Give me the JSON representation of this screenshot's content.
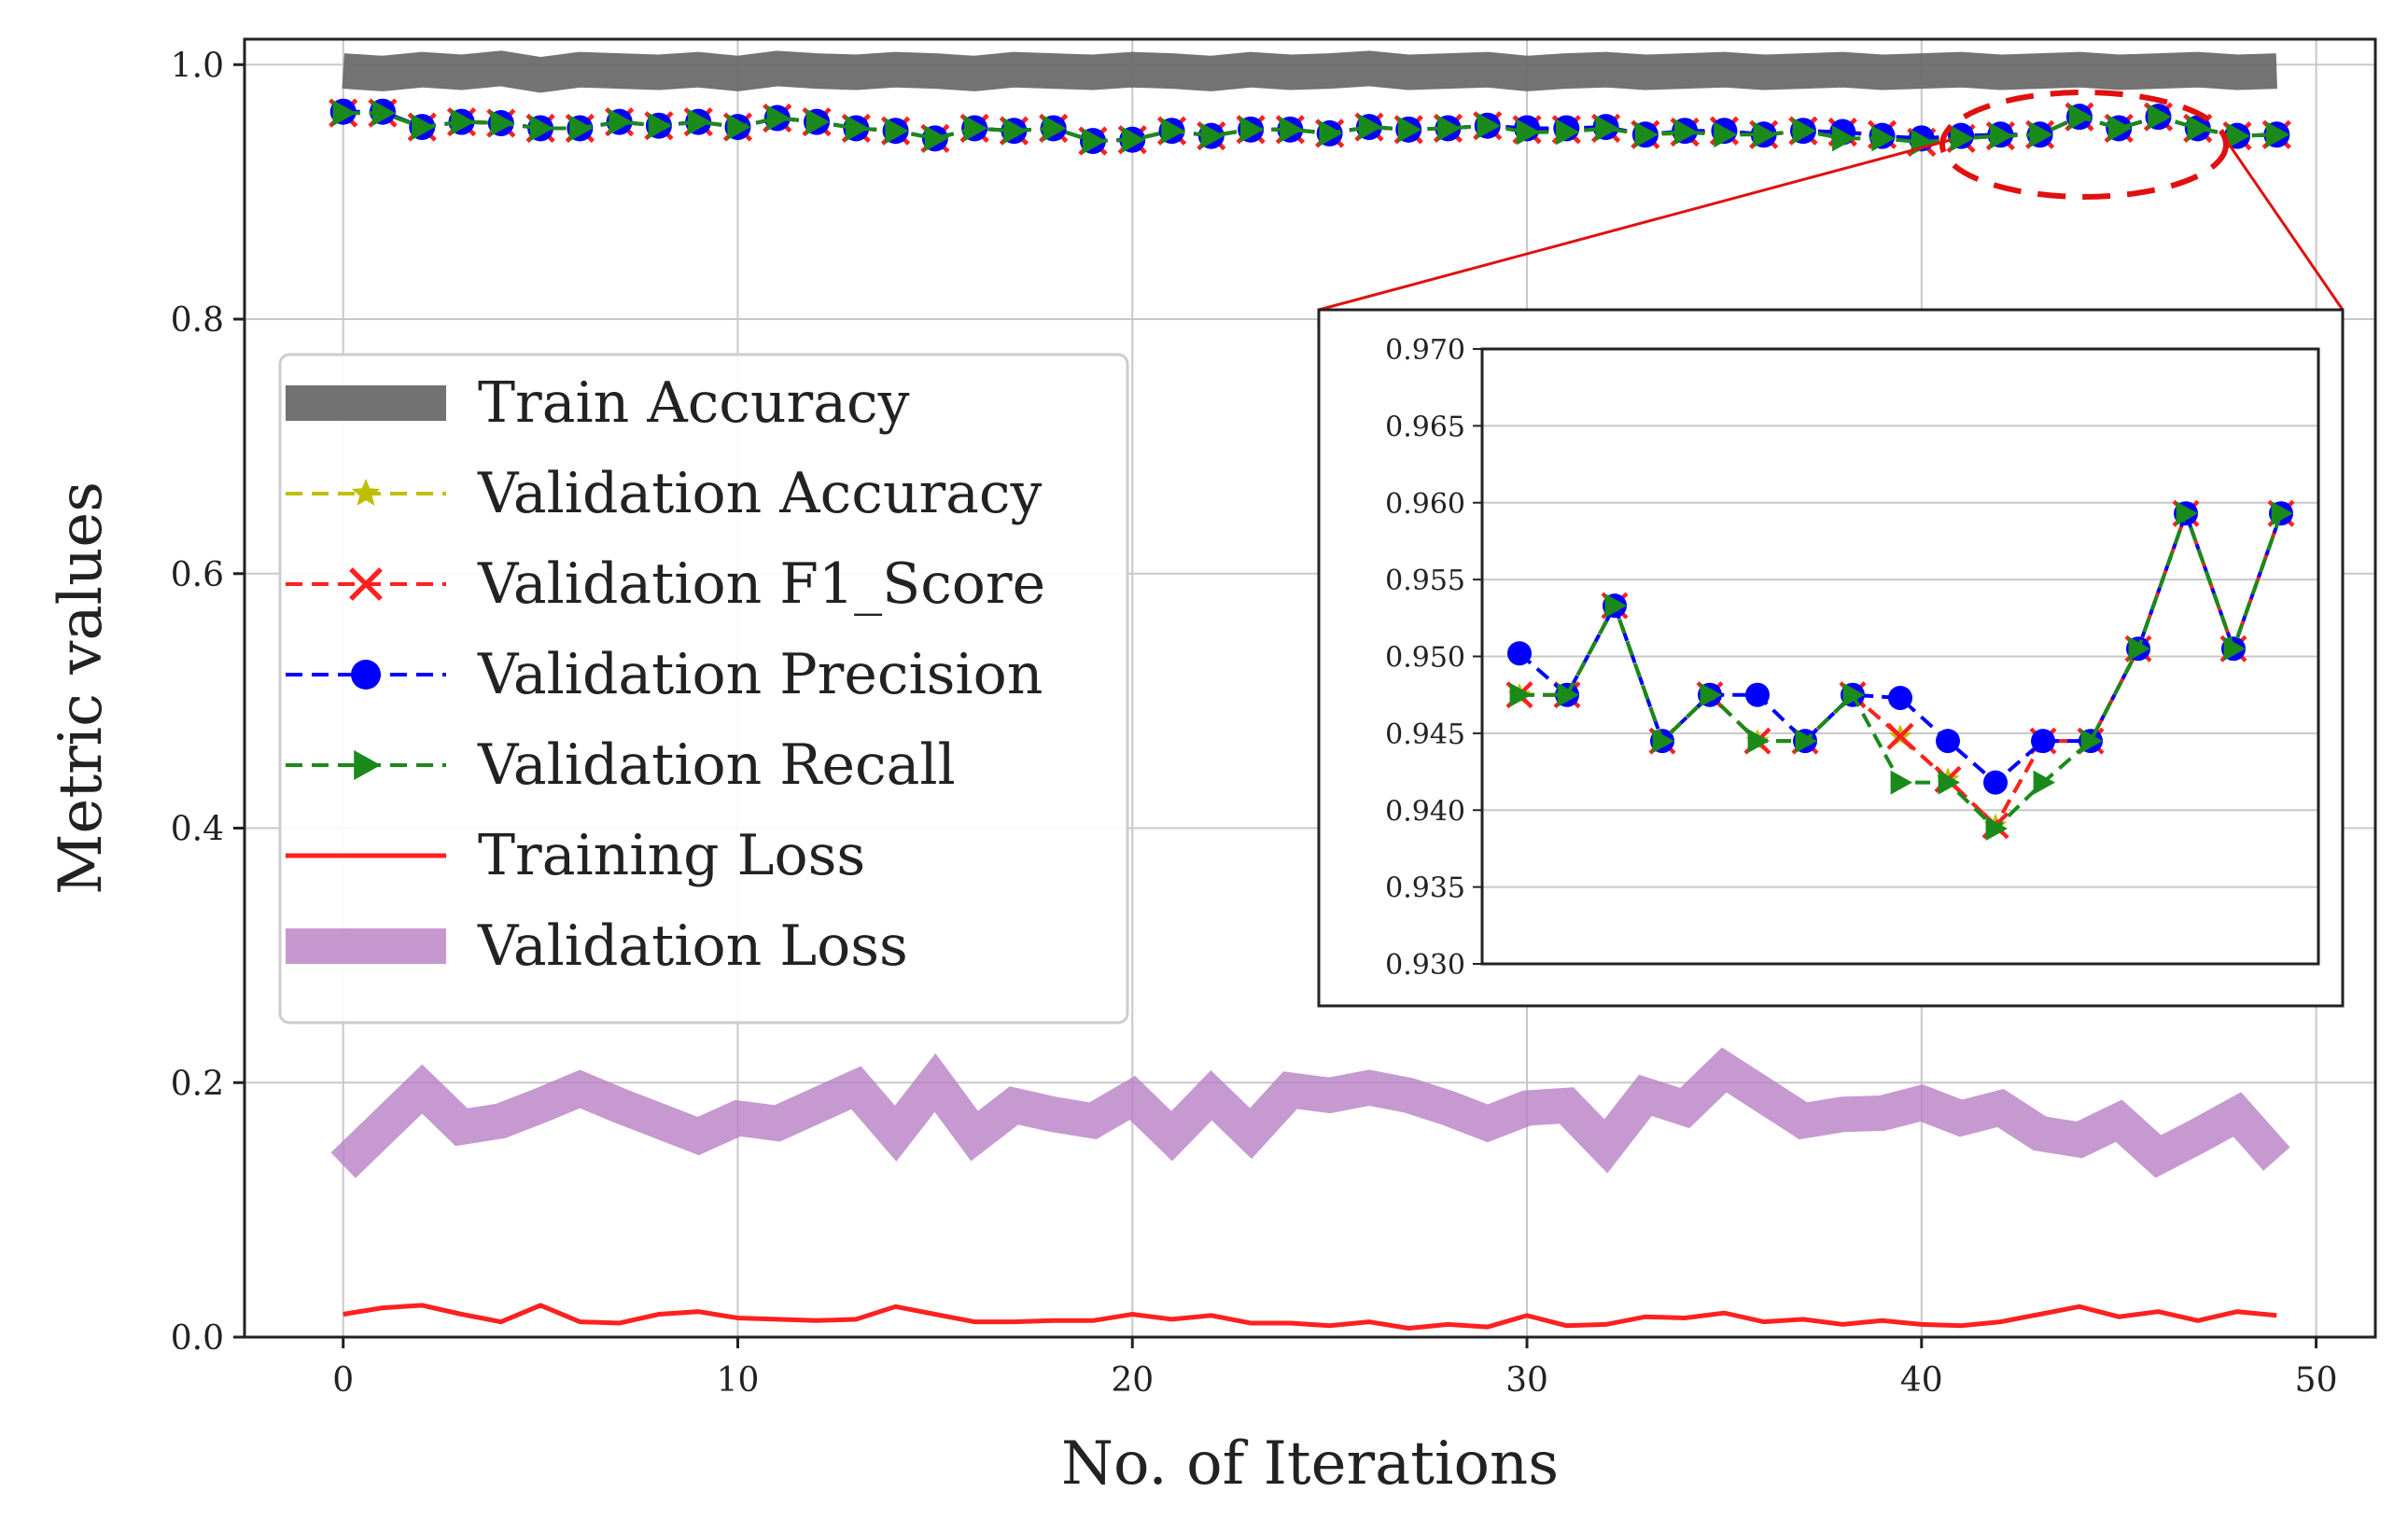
{
  "chart_data": {
    "type": "line",
    "title": "",
    "xlabel": "No. of Iterations",
    "ylabel": "Metric values",
    "xlim": [
      -2.5,
      51.5
    ],
    "ylim": [
      0.0,
      1.02
    ],
    "grid": true,
    "xticks": [
      0,
      10,
      20,
      30,
      40,
      50
    ],
    "xtick_labels": [
      "0",
      "10",
      "20",
      "30",
      "40",
      "50"
    ],
    "yticks": [
      0.0,
      0.2,
      0.4,
      0.6,
      0.8,
      1.0
    ],
    "ytick_labels": [
      "0.0",
      "0.2",
      "0.4",
      "0.6",
      "0.8",
      "1.0"
    ],
    "legend_position": "center-left",
    "x": [
      0,
      1,
      2,
      3,
      4,
      5,
      6,
      7,
      8,
      9,
      10,
      11,
      12,
      13,
      14,
      15,
      16,
      17,
      18,
      19,
      20,
      21,
      22,
      23,
      24,
      25,
      26,
      27,
      28,
      29,
      30,
      31,
      32,
      33,
      34,
      35,
      36,
      37,
      38,
      39,
      40,
      41,
      42,
      43,
      44,
      45,
      46,
      47,
      48,
      49
    ],
    "series": [
      {
        "name": "Train Accuracy",
        "color": "#6b6b6b",
        "style": "solid-thick",
        "values": [
          0.995,
          0.993,
          0.996,
          0.994,
          0.997,
          0.992,
          0.996,
          0.995,
          0.994,
          0.996,
          0.993,
          0.997,
          0.995,
          0.994,
          0.996,
          0.995,
          0.993,
          0.996,
          0.995,
          0.994,
          0.996,
          0.995,
          0.993,
          0.996,
          0.994,
          0.995,
          0.997,
          0.994,
          0.995,
          0.996,
          0.993,
          0.995,
          0.996,
          0.994,
          0.995,
          0.996,
          0.994,
          0.995,
          0.996,
          0.994,
          0.995,
          0.996,
          0.994,
          0.995,
          0.996,
          0.994,
          0.995,
          0.996,
          0.994,
          0.995
        ]
      },
      {
        "name": "Validation Accuracy",
        "color": "#bfbf00",
        "style": "dashed-star",
        "values": [
          0.962,
          0.962,
          0.951,
          0.955,
          0.954,
          0.95,
          0.95,
          0.955,
          0.952,
          0.955,
          0.951,
          0.958,
          0.955,
          0.95,
          0.948,
          0.942,
          0.95,
          0.948,
          0.95,
          0.94,
          0.941,
          0.948,
          0.944,
          0.949,
          0.949,
          0.946,
          0.951,
          0.949,
          0.95,
          0.952,
          0.949,
          0.949,
          0.95,
          0.945,
          0.946,
          0.948,
          0.945,
          0.948,
          0.947,
          0.944,
          0.94,
          0.942,
          0.944,
          0.945,
          0.959,
          0.95,
          0.959,
          0.95,
          0.944,
          0.945
        ]
      },
      {
        "name": "Validation F1_Score",
        "color": "#ff2020",
        "style": "dashed-x",
        "values": [
          0.962,
          0.962,
          0.951,
          0.955,
          0.954,
          0.95,
          0.95,
          0.955,
          0.952,
          0.955,
          0.951,
          0.958,
          0.955,
          0.95,
          0.948,
          0.942,
          0.95,
          0.948,
          0.95,
          0.94,
          0.941,
          0.948,
          0.944,
          0.949,
          0.949,
          0.946,
          0.951,
          0.949,
          0.95,
          0.952,
          0.949,
          0.949,
          0.95,
          0.945,
          0.947,
          0.948,
          0.945,
          0.948,
          0.947,
          0.945,
          0.939,
          0.942,
          0.944,
          0.945,
          0.959,
          0.95,
          0.959,
          0.95,
          0.944,
          0.945
        ]
      },
      {
        "name": "Validation Precision",
        "color": "#0000ff",
        "style": "dashed-circle",
        "values": [
          0.963,
          0.963,
          0.951,
          0.955,
          0.954,
          0.95,
          0.95,
          0.955,
          0.952,
          0.955,
          0.951,
          0.958,
          0.955,
          0.95,
          0.948,
          0.942,
          0.95,
          0.948,
          0.95,
          0.94,
          0.941,
          0.948,
          0.944,
          0.949,
          0.949,
          0.946,
          0.951,
          0.949,
          0.95,
          0.952,
          0.95,
          0.95,
          0.951,
          0.945,
          0.948,
          0.948,
          0.945,
          0.948,
          0.947,
          0.944,
          0.942,
          0.944,
          0.945,
          0.945,
          0.959,
          0.95,
          0.959,
          0.95,
          0.944,
          0.945
        ]
      },
      {
        "name": "Validation Recall",
        "color": "#1a8a1a",
        "style": "dashed-triangle",
        "values": [
          0.962,
          0.962,
          0.951,
          0.955,
          0.954,
          0.95,
          0.95,
          0.955,
          0.952,
          0.955,
          0.951,
          0.958,
          0.955,
          0.95,
          0.948,
          0.942,
          0.95,
          0.948,
          0.95,
          0.94,
          0.941,
          0.948,
          0.944,
          0.949,
          0.949,
          0.946,
          0.951,
          0.949,
          0.95,
          0.952,
          0.947,
          0.947,
          0.95,
          0.945,
          0.947,
          0.945,
          0.945,
          0.948,
          0.942,
          0.942,
          0.939,
          0.942,
          0.944,
          0.945,
          0.959,
          0.95,
          0.959,
          0.95,
          0.944,
          0.945
        ]
      },
      {
        "name": "Training Loss",
        "color": "#ff2020",
        "style": "solid",
        "values": [
          0.018,
          0.023,
          0.025,
          0.018,
          0.012,
          0.025,
          0.012,
          0.011,
          0.018,
          0.02,
          0.015,
          0.014,
          0.013,
          0.014,
          0.024,
          0.018,
          0.012,
          0.012,
          0.013,
          0.013,
          0.018,
          0.014,
          0.017,
          0.011,
          0.011,
          0.009,
          0.012,
          0.007,
          0.01,
          0.008,
          0.017,
          0.009,
          0.01,
          0.016,
          0.015,
          0.019,
          0.012,
          0.014,
          0.01,
          0.013,
          0.01,
          0.009,
          0.012,
          0.018,
          0.024,
          0.016,
          0.02,
          0.013,
          0.02,
          0.017
        ]
      },
      {
        "name": "Validation Loss",
        "color": "#b87fc4",
        "style": "solid-thick",
        "values": [
          0.135,
          0.165,
          0.195,
          0.165,
          0.17,
          0.182,
          0.195,
          0.182,
          0.17,
          0.158,
          0.172,
          0.168,
          0.182,
          0.196,
          0.16,
          0.2,
          0.158,
          0.182,
          0.175,
          0.17,
          0.188,
          0.158,
          0.19,
          0.16,
          0.194,
          0.19,
          0.196,
          0.19,
          0.18,
          0.168,
          0.18,
          0.182,
          0.15,
          0.19,
          0.18,
          0.21,
          0.19,
          0.17,
          0.175,
          0.176,
          0.184,
          0.172,
          0.18,
          0.16,
          0.155,
          0.17,
          0.142,
          0.158,
          0.175,
          0.14
        ]
      }
    ],
    "inset": {
      "x_range": [
        39.5,
        49.5
      ],
      "ylim": [
        0.93,
        0.97
      ],
      "yticks": [
        0.93,
        0.935,
        0.94,
        0.945,
        0.95,
        0.955,
        0.96,
        0.965,
        0.97
      ],
      "ytick_labels": [
        "0.930",
        "0.935",
        "0.940",
        "0.945",
        "0.950",
        "0.955",
        "0.960",
        "0.965",
        "0.970"
      ],
      "series": [
        {
          "name": "Validation Accuracy",
          "color": "#bfbf00",
          "values": [
            0.9475,
            0.9475,
            0.9533,
            0.9445,
            0.9475,
            0.9445,
            0.9445,
            0.9475,
            0.9448,
            0.942,
            0.939,
            0.9445,
            0.9445,
            0.9505,
            0.9593,
            0.9505,
            0.9593
          ]
        },
        {
          "name": "Validation F1_Score",
          "color": "#ff2020",
          "values": [
            0.9475,
            0.9475,
            0.9533,
            0.9445,
            0.9475,
            0.9445,
            0.9445,
            0.9475,
            0.9448,
            0.942,
            0.939,
            0.9445,
            0.9445,
            0.9505,
            0.9593,
            0.9505,
            0.9593
          ]
        },
        {
          "name": "Validation Precision",
          "color": "#0000ff",
          "values": [
            0.9502,
            0.9475,
            0.9533,
            0.9445,
            0.9475,
            0.9475,
            0.9445,
            0.9475,
            0.9473,
            0.9445,
            0.9418,
            0.9445,
            0.9445,
            0.9505,
            0.9593,
            0.9505,
            0.9593
          ]
        },
        {
          "name": "Validation Recall",
          "color": "#1a8a1a",
          "values": [
            0.9475,
            0.9475,
            0.9533,
            0.9445,
            0.9475,
            0.9445,
            0.9445,
            0.9475,
            0.9418,
            0.9418,
            0.9388,
            0.9418,
            0.9445,
            0.9505,
            0.9593,
            0.9505,
            0.9593
          ]
        }
      ]
    }
  }
}
